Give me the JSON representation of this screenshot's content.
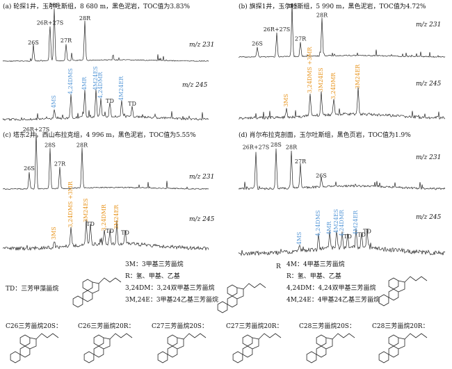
{
  "colors": {
    "blue": "#5a9ad8",
    "orange": "#e8951e",
    "trace": "#222222",
    "gray": "#9a9a9a"
  },
  "panels": [
    {
      "id": "a",
      "title": "(a) 轮探1井，玉尔吐斯组，8 680 m，黑色泥岩，TOC值为3.83%",
      "mz231": "m/z 231",
      "mz245": "m/z 245",
      "peaks231": [
        {
          "label": "26S",
          "h": 0.28
        },
        {
          "label": "26R+27S",
          "h": 0.66
        },
        {
          "label": "28S",
          "h": 1.0
        },
        {
          "label": "27R",
          "h": 0.32
        },
        {
          "label": "28R",
          "h": 0.75
        }
      ],
      "peaks245": [
        {
          "label": "4MS",
          "h": 0.22,
          "color": "blue"
        },
        {
          "label": "4,24DMS",
          "h": 0.55,
          "color": "blue"
        },
        {
          "label": "4MR",
          "h": 0.65,
          "color": "blue"
        },
        {
          "label": "4M24ES",
          "h": 0.65,
          "color": "blue"
        },
        {
          "label": "4,24DMR",
          "h": 0.45,
          "color": "blue"
        },
        {
          "label": "TD",
          "h": 0.35,
          "color": "trace"
        },
        {
          "label": "4M24ER",
          "h": 0.4,
          "color": "blue"
        },
        {
          "label": "TD",
          "h": 0.28,
          "color": "trace"
        }
      ]
    },
    {
      "id": "b",
      "title": "(b) 旗探1井，玉尔吐斯组，5 990 m，黑色泥岩，TOC值为4.72%",
      "mz231": "m/z 231",
      "mz245": "m/z 245",
      "peaks231": [
        {
          "label": "26S",
          "h": 0.2
        },
        {
          "label": "26R+27S",
          "h": 0.5
        },
        {
          "label": "28S",
          "h": 1.0
        },
        {
          "label": "27R",
          "h": 0.3
        },
        {
          "label": "28R",
          "h": 0.8
        }
      ],
      "peaks245": [
        {
          "label": "3MS",
          "h": 0.22,
          "color": "orange"
        },
        {
          "label": "3,24DMS +3MR",
          "h": 0.55,
          "color": "orange"
        },
        {
          "label": "3M24ES",
          "h": 0.58,
          "color": "orange"
        },
        {
          "label": "3,24DMR",
          "h": 0.4,
          "color": "orange"
        },
        {
          "label": "3M24ER",
          "h": 0.65,
          "color": "orange"
        }
      ]
    },
    {
      "id": "c",
      "title": "(c) 塔东2井，西山布拉克组，4 996 m，黑色泥岩，TOC值为5.55%",
      "mz231": "m/z 231",
      "mz245": "m/z 245",
      "peaks231": [
        {
          "label": "26S",
          "h": 0.3
        },
        {
          "label": "26R+27S",
          "h": 1.0
        },
        {
          "label": "28S",
          "h": 0.72
        },
        {
          "label": "27R",
          "h": 0.38
        },
        {
          "label": "28R",
          "h": 0.72
        }
      ],
      "peaks245": [
        {
          "label": "3MS",
          "h": 0.2,
          "color": "orange"
        },
        {
          "label": "3,24DMS +3MR",
          "h": 0.55,
          "color": "orange"
        },
        {
          "label": "3M24ES",
          "h": 0.7,
          "color": "orange"
        },
        {
          "label": "TD",
          "h": 0.6,
          "color": "trace"
        },
        {
          "label": "3,24DMR",
          "h": 0.45,
          "color": "orange"
        },
        {
          "label": "TD",
          "h": 0.4,
          "color": "trace"
        },
        {
          "label": "3M24ER",
          "h": 0.5,
          "color": "orange"
        },
        {
          "label": "TD",
          "h": 0.35,
          "color": "trace"
        }
      ]
    },
    {
      "id": "d",
      "title": "(d) 肖尔布拉克剖面，玉尔吐斯组，黑色页岩，TOC值为1.9%",
      "mz231": "m/z 231",
      "mz245": "m/z 245",
      "peaks231": [
        {
          "label": "26R+27S",
          "h": 0.8
        },
        {
          "label": "28S",
          "h": 0.85
        },
        {
          "label": "28R",
          "h": 0.8
        },
        {
          "label": "27R",
          "h": 0.5
        },
        {
          "label": "26S",
          "h": 0.2
        }
      ],
      "peaks245": [
        {
          "label": "4MS",
          "h": 0.2,
          "color": "blue"
        },
        {
          "label": "4,24DMS",
          "h": 0.45,
          "color": "blue"
        },
        {
          "label": "4MR",
          "h": 0.5,
          "color": "blue"
        },
        {
          "label": "4M24ES",
          "h": 0.55,
          "color": "blue"
        },
        {
          "label": "4,24DMR",
          "h": 0.45,
          "color": "blue"
        },
        {
          "label": "4M24ER",
          "h": 0.5,
          "color": "blue"
        },
        {
          "label": "TD",
          "h": 0.4,
          "color": "trace"
        },
        {
          "label": "TD",
          "h": 0.45,
          "color": "trace"
        },
        {
          "label": "TD",
          "h": 0.55,
          "color": "trace"
        }
      ]
    }
  ],
  "legend": {
    "td": "TD：三芳甲藻甾烷",
    "left": {
      "l1": "3M：3甲基三芳甾烷",
      "l2": "R：氢、甲基、乙基",
      "l3": "3,24DM：3,24双甲基三芳甾烷",
      "l4": "3M,24E：3甲基24乙基三芳甾烷"
    },
    "right": {
      "l1": "4M：4甲基三芳甾烷",
      "l2": "R：氢、甲基、乙基",
      "l3": "4,24DM：4,24双甲基三芳甾烷",
      "l4": "4M,24E：4甲基24乙基三芳甾烷",
      "r": "R"
    }
  },
  "structures": [
    "C26三芳甾烷20S：",
    "C26三芳甾烷20R：",
    "C27三芳甾烷20S：",
    "C27三芳甾烷20R：",
    "C28三芳甾烷20S：",
    "C28三芳甾烷20R："
  ]
}
